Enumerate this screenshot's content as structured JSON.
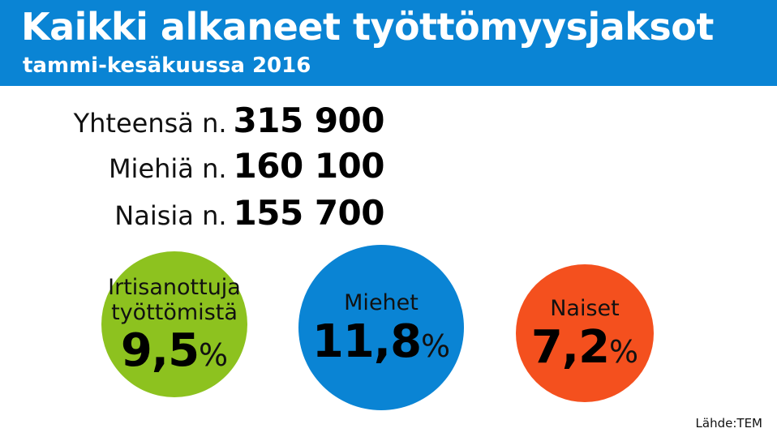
{
  "header": {
    "title": "Kaikki alkaneet työttömyysjaksot",
    "subtitle": "tammi-kesäkuussa 2016"
  },
  "chart_data": {
    "type": "table",
    "totals": [
      {
        "label": "Yhteensä n.",
        "value": "315 900"
      },
      {
        "label": "Miehiä n.",
        "value": "160 100"
      },
      {
        "label": "Naisia n.",
        "value": "155 700"
      }
    ],
    "circles": [
      {
        "label_lines": [
          "Irtisanottuja",
          "työttömistä"
        ],
        "value": "9,5",
        "unit": "%",
        "color": "#8dc21f"
      },
      {
        "label_lines": [
          "Miehet"
        ],
        "value": "11,8",
        "unit": "%",
        "color": "#0a84d4"
      },
      {
        "label_lines": [
          "Naiset"
        ],
        "value": "7,2",
        "unit": "%",
        "color": "#f4501e"
      }
    ]
  },
  "source": "Lähde:TEM"
}
